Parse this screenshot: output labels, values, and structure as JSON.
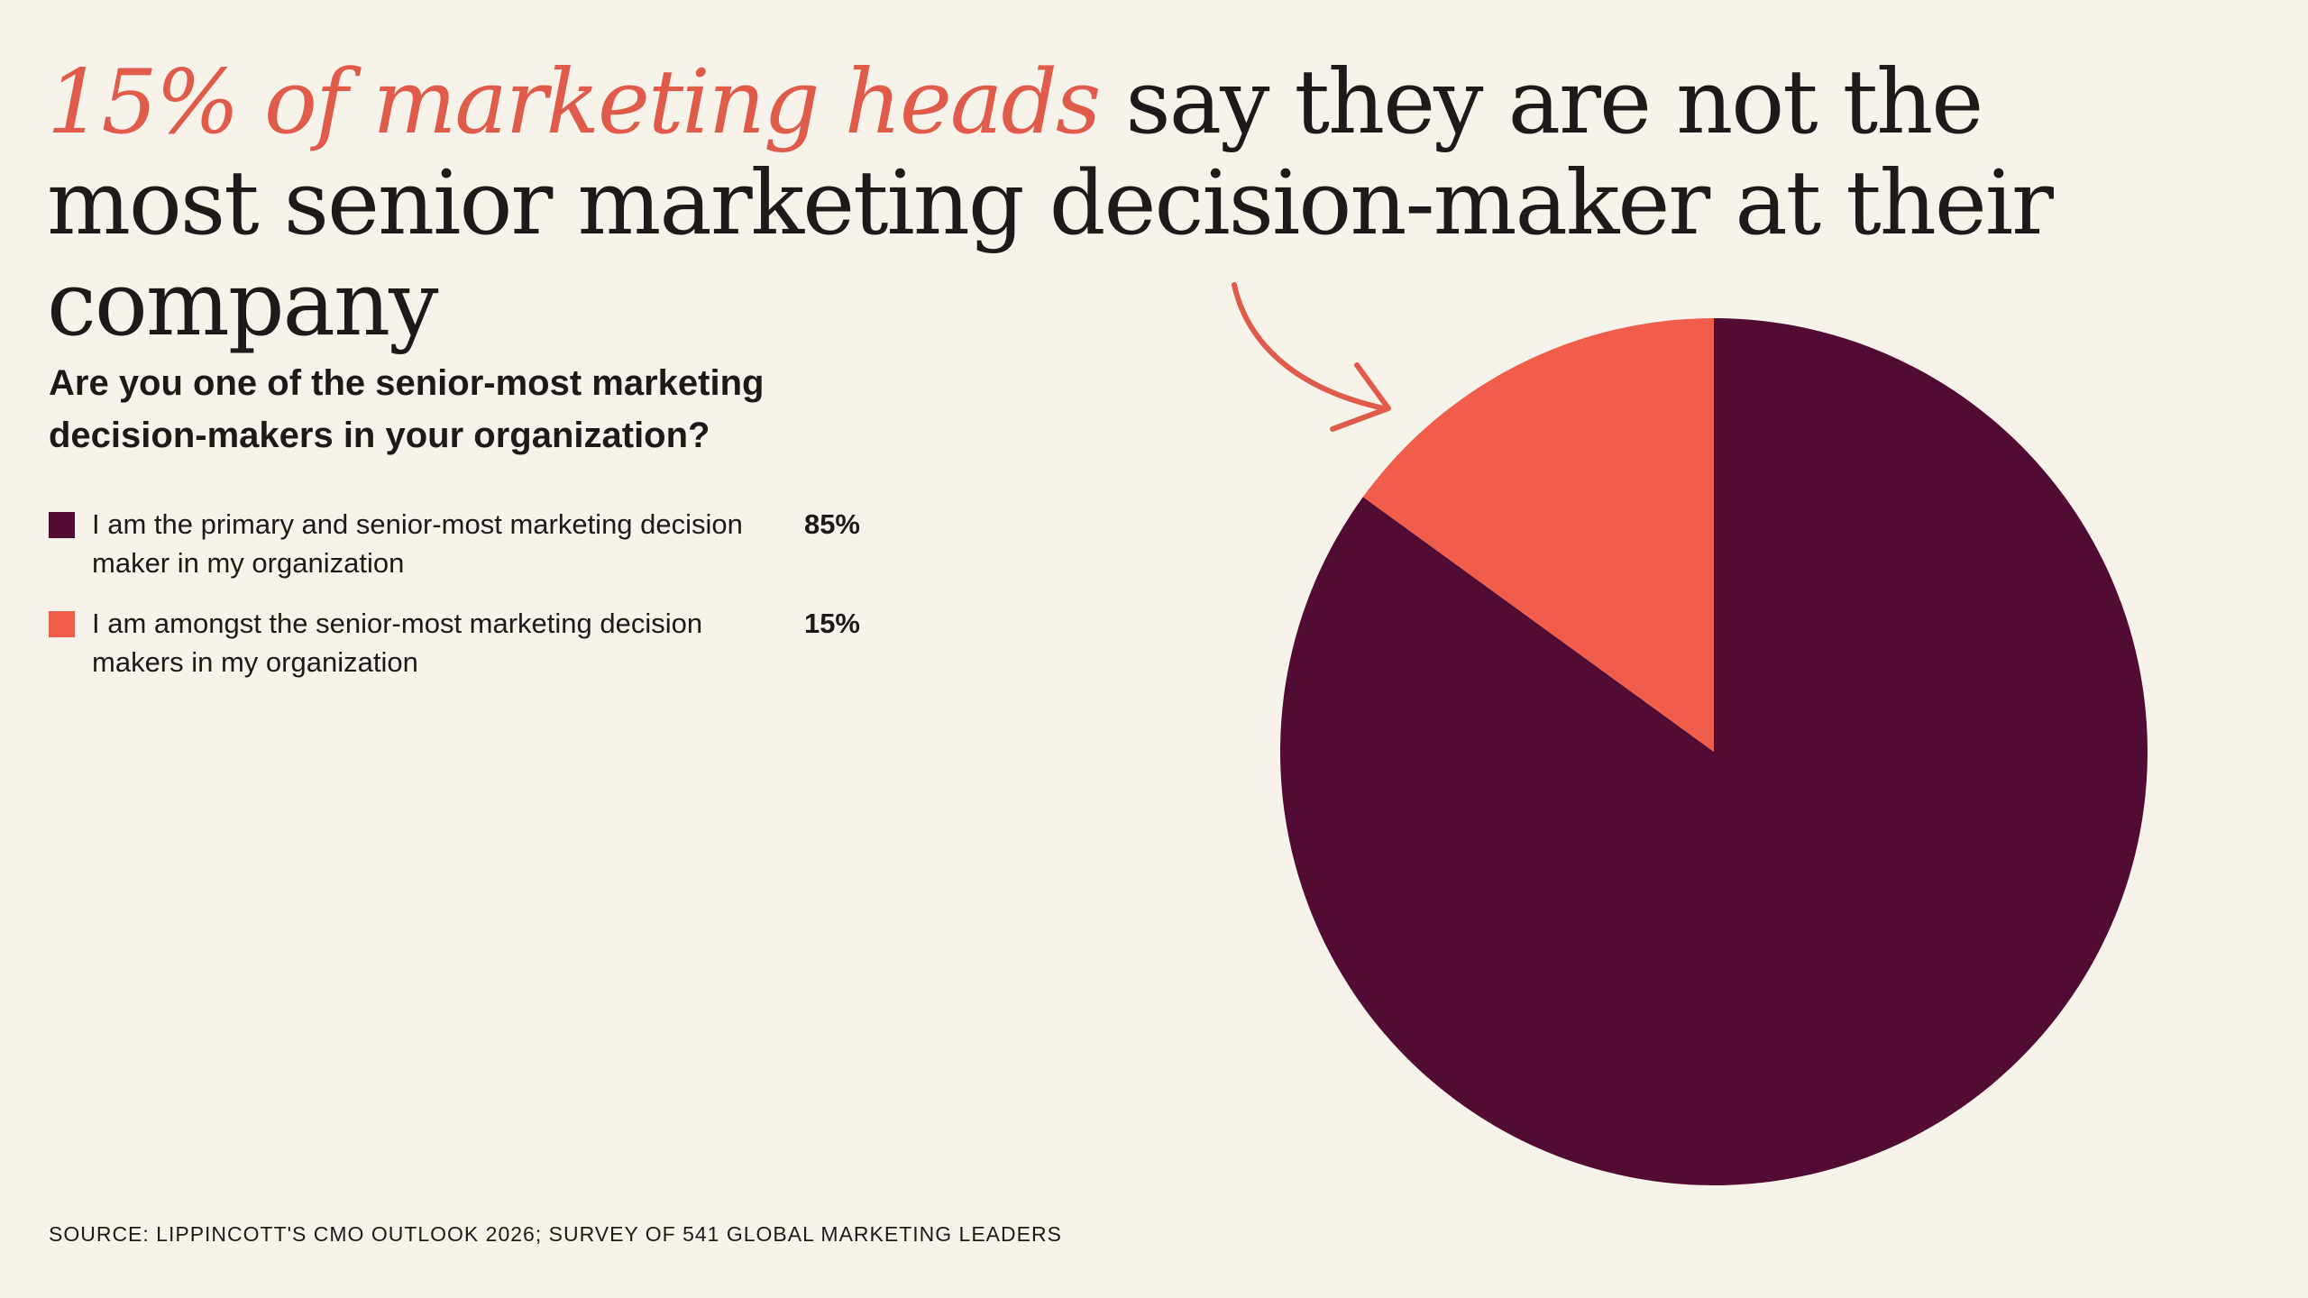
{
  "headline": {
    "accent": "15% of marketing heads",
    "rest": " say they are not the most senior marketing decision-maker at their company"
  },
  "question": "Are you one of the senior-most marketing decision-makers in your organization?",
  "source": "SOURCE: LIPPINCOTT'S CMO OUTLOOK 2026; SURVEY OF 541 GLOBAL MARKETING LEADERS",
  "colors": {
    "background": "#f7f3eb",
    "accent": "#e15b4a",
    "text": "#1e1a1a"
  },
  "chart_data": {
    "type": "pie",
    "title": "Are you one of the senior-most marketing decision-makers in your organization?",
    "slices": [
      {
        "label": "I am the primary and senior-most marketing decision maker in my organization",
        "value": 85,
        "display": "85%",
        "color": "#520c33"
      },
      {
        "label": "I am amongst the senior-most marketing decision makers in my organization",
        "value": 15,
        "display": "15%",
        "color": "#f15d4b"
      }
    ],
    "legend_position": "left",
    "start_angle": "12 o'clock, clockwise",
    "annotation": "arrow pointing to the 15% slice"
  }
}
